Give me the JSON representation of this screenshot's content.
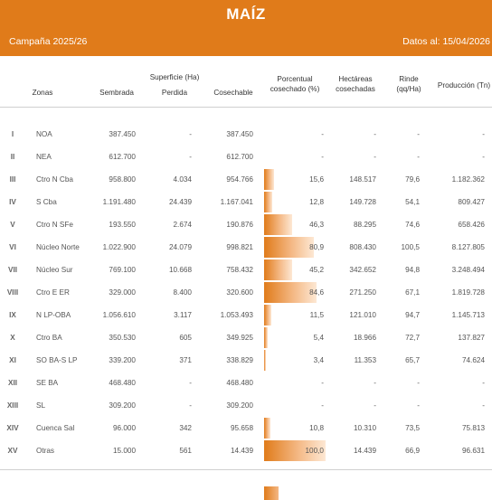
{
  "header": {
    "title": "MAÍZ",
    "campaign": "Campaña 2025/26",
    "date": "Datos al: 15/04/2026"
  },
  "columns": {
    "zonas": "Zonas",
    "sembrada": "Sembrada",
    "superficie_group": "Superficie (Ha)",
    "perdida": "Perdida",
    "cosechable": "Cosechable",
    "porcentual": "Porcentual cosechado (%)",
    "hectareas": "Hectáreas cosechadas",
    "rinde": "Rinde (qq/Ha)",
    "produccion": "Producción (Tn)"
  },
  "rows": [
    {
      "n": "I",
      "zona": "NOA",
      "sembrada": "387.450",
      "perdida": "-",
      "cosechable": "387.450",
      "pct": "-",
      "pct_value": 0,
      "hect": "-",
      "rinde": "-",
      "prod": "-"
    },
    {
      "n": "II",
      "zona": "NEA",
      "sembrada": "612.700",
      "perdida": "-",
      "cosechable": "612.700",
      "pct": "-",
      "pct_value": 0,
      "hect": "-",
      "rinde": "-",
      "prod": "-"
    },
    {
      "n": "III",
      "zona": "Ctro N Cba",
      "sembrada": "958.800",
      "perdida": "4.034",
      "cosechable": "954.766",
      "pct": "15,6",
      "pct_value": 15.6,
      "hect": "148.517",
      "rinde": "79,6",
      "prod": "1.182.362"
    },
    {
      "n": "IV",
      "zona": "S Cba",
      "sembrada": "1.191.480",
      "perdida": "24.439",
      "cosechable": "1.167.041",
      "pct": "12,8",
      "pct_value": 12.8,
      "hect": "149.728",
      "rinde": "54,1",
      "prod": "809.427"
    },
    {
      "n": "V",
      "zona": "Ctro N SFe",
      "sembrada": "193.550",
      "perdida": "2.674",
      "cosechable": "190.876",
      "pct": "46,3",
      "pct_value": 46.3,
      "hect": "88.295",
      "rinde": "74,6",
      "prod": "658.426"
    },
    {
      "n": "VI",
      "zona": "Núcleo Norte",
      "sembrada": "1.022.900",
      "perdida": "24.079",
      "cosechable": "998.821",
      "pct": "80,9",
      "pct_value": 80.9,
      "hect": "808.430",
      "rinde": "100,5",
      "prod": "8.127.805"
    },
    {
      "n": "VII",
      "zona": "Núcleo Sur",
      "sembrada": "769.100",
      "perdida": "10.668",
      "cosechable": "758.432",
      "pct": "45,2",
      "pct_value": 45.2,
      "hect": "342.652",
      "rinde": "94,8",
      "prod": "3.248.494"
    },
    {
      "n": "VIII",
      "zona": "Ctro E ER",
      "sembrada": "329.000",
      "perdida": "8.400",
      "cosechable": "320.600",
      "pct": "84,6",
      "pct_value": 84.6,
      "hect": "271.250",
      "rinde": "67,1",
      "prod": "1.819.728"
    },
    {
      "n": "IX",
      "zona": "N LP-OBA",
      "sembrada": "1.056.610",
      "perdida": "3.117",
      "cosechable": "1.053.493",
      "pct": "11,5",
      "pct_value": 11.5,
      "hect": "121.010",
      "rinde": "94,7",
      "prod": "1.145.713"
    },
    {
      "n": "X",
      "zona": "Ctro BA",
      "sembrada": "350.530",
      "perdida": "605",
      "cosechable": "349.925",
      "pct": "5,4",
      "pct_value": 5.4,
      "hect": "18.966",
      "rinde": "72,7",
      "prod": "137.827"
    },
    {
      "n": "XI",
      "zona": "SO BA-S LP",
      "sembrada": "339.200",
      "perdida": "371",
      "cosechable": "338.829",
      "pct": "3,4",
      "pct_value": 3.4,
      "hect": "11.353",
      "rinde": "65,7",
      "prod": "74.624"
    },
    {
      "n": "XII",
      "zona": "SE BA",
      "sembrada": "468.480",
      "perdida": "-",
      "cosechable": "468.480",
      "pct": "-",
      "pct_value": 0,
      "hect": "-",
      "rinde": "-",
      "prod": "-"
    },
    {
      "n": "XIII",
      "zona": "SL",
      "sembrada": "309.200",
      "perdida": "-",
      "cosechable": "309.200",
      "pct": "-",
      "pct_value": 0,
      "hect": "-",
      "rinde": "-",
      "prod": "-"
    },
    {
      "n": "XIV",
      "zona": "Cuenca Sal",
      "sembrada": "96.000",
      "perdida": "342",
      "cosechable": "95.658",
      "pct": "10,8",
      "pct_value": 10.8,
      "hect": "10.310",
      "rinde": "73,5",
      "prod": "75.813"
    },
    {
      "n": "XV",
      "zona": "Otras",
      "sembrada": "15.000",
      "perdida": "561",
      "cosechable": "14.439",
      "pct": "100,0",
      "pct_value": 100,
      "hect": "14.439",
      "rinde": "66,9",
      "prod": "96.631"
    }
  ],
  "colors": {
    "accent": "#e07b1a"
  }
}
